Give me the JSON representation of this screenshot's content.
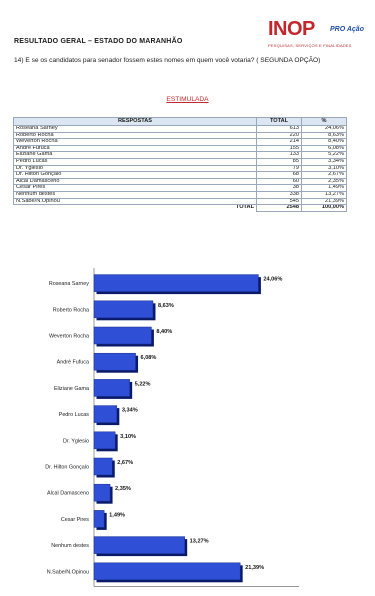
{
  "header": {
    "title": "RESULTADO GERAL – ESTADO DO MARANHÃO",
    "logo_main": "INOP",
    "logo_side": "PRO Ação",
    "logo_sub": "PESQUISAS, SERVIÇOS E FINALIDADES"
  },
  "question": "14) E se os candidatos para senador fossem estes nomes em quem você votaria? ( SEGUNDA OPÇÃO)",
  "section_label": "ESTIMULADA",
  "table": {
    "headers": [
      "RESPOSTAS",
      "TOTAL",
      "%"
    ],
    "rows": [
      {
        "label": "Roseana Sarney",
        "total": "613",
        "pct": "24,06%"
      },
      {
        "label": "Roberto Rocha",
        "total": "220",
        "pct": "8,63%"
      },
      {
        "label": "Weverton Rocha",
        "total": "214",
        "pct": "8,40%"
      },
      {
        "label": "André Fufuca",
        "total": "155",
        "pct": "6,08%"
      },
      {
        "label": "Eliziane Gama",
        "total": "133",
        "pct": "5,22%"
      },
      {
        "label": "Pedro Lucas",
        "total": "85",
        "pct": "3,34%"
      },
      {
        "label": "Dr. Yglesio",
        "total": "79",
        "pct": "3,10%"
      },
      {
        "label": "Dr. Hilton Gonçalo",
        "total": "68",
        "pct": "2,67%"
      },
      {
        "label": "Alcal Damasceno",
        "total": "60",
        "pct": "2,35%"
      },
      {
        "label": "Cesar Pires",
        "total": "38",
        "pct": "1,49%"
      },
      {
        "label": "Nenhum destes",
        "total": "338",
        "pct": "13,27%"
      },
      {
        "label": "N.Sabe/N.Opinou",
        "total": "545",
        "pct": "21,39%"
      }
    ],
    "total_label": "TOTAL",
    "total_value": "2548",
    "total_pct": "100,00%"
  },
  "chart_data": {
    "type": "bar",
    "orientation": "horizontal",
    "categories": [
      "Roseana Sarney",
      "Roberto Rocha",
      "Weverton Rocha",
      "André Fufuca",
      "Eliziane Gama",
      "Pedro Lucas",
      "Dr. Yglesio",
      "Dr. Hilton Gonçalo",
      "Alcal Damasceno",
      "Cesar Pires",
      "Nenhum destes",
      "N.Sabe/N.Opinou"
    ],
    "values": [
      24.06,
      8.63,
      8.4,
      6.08,
      5.22,
      3.34,
      3.1,
      2.67,
      2.35,
      1.49,
      13.27,
      21.39
    ],
    "value_labels": [
      "24,06%",
      "8,63%",
      "8,40%",
      "6,08%",
      "5,22%",
      "3,34%",
      "3,10%",
      "2,67%",
      "2,35%",
      "1,49%",
      "13,27%",
      "21,39%"
    ],
    "xlim": [
      0,
      30
    ],
    "bar_color": "#2f4fd6",
    "bar_shadow_color": "#0a1a6b",
    "grid": false,
    "title": "",
    "xlabel": "",
    "ylabel": ""
  }
}
